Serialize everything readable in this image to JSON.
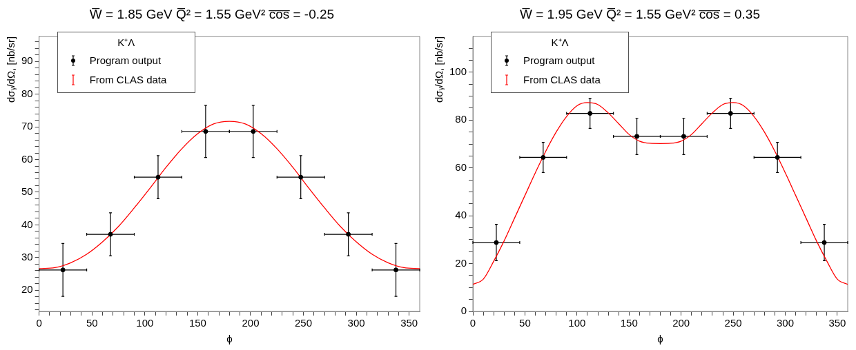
{
  "chart_data": [
    {
      "type": "scatter",
      "title": "W̅ = 1.85 GeV Q̅² = 1.55 GeV² c̅o̅s̅ = -0.25",
      "xlabel": "ϕ",
      "ylabel": "dσᵧ/dΩ, [nb/sr]",
      "legend_title": "K⁺Λ",
      "legend": "top left",
      "grid": false,
      "xlim": [
        0,
        360
      ],
      "xticks": [
        0,
        {
          "value": 10,
          "label": null
        },
        {
          "value": 20,
          "label": null
        },
        {
          "value": 30,
          "label": null
        },
        {
          "value": 40,
          "label": null
        },
        50,
        {
          "value": 60,
          "label": null
        },
        {
          "value": 70,
          "label": null
        },
        {
          "value": 80,
          "label": null
        },
        {
          "value": 90,
          "label": null
        },
        100,
        {
          "value": 110,
          "label": null
        },
        {
          "value": 120,
          "label": null
        },
        {
          "value": 130,
          "label": null
        },
        {
          "value": 140,
          "label": null
        },
        150,
        {
          "value": 160,
          "label": null
        },
        {
          "value": 170,
          "label": null
        },
        {
          "value": 180,
          "label": null
        },
        {
          "value": 190,
          "label": null
        },
        200,
        {
          "value": 210,
          "label": null
        },
        {
          "value": 220,
          "label": null
        },
        {
          "value": 230,
          "label": null
        },
        {
          "value": 240,
          "label": null
        },
        250,
        {
          "value": 260,
          "label": null
        },
        {
          "value": 270,
          "label": null
        },
        {
          "value": 280,
          "label": null
        },
        {
          "value": 290,
          "label": null
        },
        300,
        {
          "value": 310,
          "label": null
        },
        {
          "value": 320,
          "label": null
        },
        {
          "value": 330,
          "label": null
        },
        {
          "value": 340,
          "label": null
        },
        350
      ],
      "ylim": [
        13.5,
        97.7
      ],
      "yticks": [
        {
          "value": 14,
          "label": null
        },
        {
          "value": 16,
          "label": null
        },
        {
          "value": 18,
          "label": null
        },
        20,
        {
          "value": 22,
          "label": null
        },
        {
          "value": 24,
          "label": null
        },
        {
          "value": 26,
          "label": null
        },
        {
          "value": 28,
          "label": null
        },
        30,
        {
          "value": 32,
          "label": null
        },
        {
          "value": 34,
          "label": null
        },
        {
          "value": 36,
          "label": null
        },
        {
          "value": 38,
          "label": null
        },
        40,
        {
          "value": 42,
          "label": null
        },
        {
          "value": 44,
          "label": null
        },
        {
          "value": 46,
          "label": null
        },
        {
          "value": 48,
          "label": null
        },
        50,
        {
          "value": 52,
          "label": null
        },
        {
          "value": 54,
          "label": null
        },
        {
          "value": 56,
          "label": null
        },
        {
          "value": 58,
          "label": null
        },
        60,
        {
          "value": 62,
          "label": null
        },
        {
          "value": 64,
          "label": null
        },
        {
          "value": 66,
          "label": null
        },
        {
          "value": 68,
          "label": null
        },
        70,
        {
          "value": 72,
          "label": null
        },
        {
          "value": 74,
          "label": null
        },
        {
          "value": 76,
          "label": null
        },
        {
          "value": 78,
          "label": null
        },
        80,
        {
          "value": 82,
          "label": null
        },
        {
          "value": 84,
          "label": null
        },
        {
          "value": 86,
          "label": null
        },
        {
          "value": 88,
          "label": null
        },
        90,
        {
          "value": 92,
          "label": null
        },
        {
          "value": 94,
          "label": null
        },
        {
          "value": 96,
          "label": null
        }
      ],
      "series": [
        {
          "name": "Program output",
          "type": "scatter",
          "marker": "circle",
          "color": "#000000",
          "x": [
            22.5,
            67.5,
            112.5,
            157.5,
            202.5,
            247.5,
            292.5,
            337.5
          ],
          "values": [
            26.2,
            37.1,
            54.6,
            68.6,
            68.6,
            54.6,
            37.1,
            26.2
          ],
          "errors": [
            8.1,
            6.6,
            6.6,
            8.0,
            8.0,
            6.6,
            6.6,
            8.1
          ],
          "xerrors": [
            22.5,
            22.5,
            22.5,
            22.5,
            22.5,
            22.5,
            22.5,
            22.5
          ]
        },
        {
          "name": "From CLAS data",
          "type": "line",
          "color": "#ff0000",
          "x": [
            0,
            15,
            30,
            45,
            60,
            75,
            90,
            105,
            120,
            135,
            150,
            165,
            180,
            195,
            210,
            225,
            240,
            255,
            270,
            285,
            300,
            315,
            330,
            345,
            360
          ],
          "values": [
            26.6,
            26.9,
            28.4,
            31.0,
            34.8,
            39.5,
            45.2,
            51.3,
            57.6,
            63.3,
            67.9,
            70.9,
            71.7,
            70.9,
            67.9,
            63.3,
            57.6,
            51.3,
            45.2,
            39.5,
            34.8,
            31.0,
            28.4,
            26.9,
            26.6
          ]
        }
      ]
    },
    {
      "type": "scatter",
      "title": "W̅ = 1.95 GeV Q̅² = 1.55 GeV² c̅o̅s̅ = 0.35",
      "xlabel": "ϕ",
      "ylabel": "dσᵧ/dΩ, [nb/sr]",
      "legend_title": "K⁺Λ",
      "legend": "top left",
      "grid": false,
      "xlim": [
        0,
        360
      ],
      "xticks": [
        0,
        {
          "value": 10,
          "label": null
        },
        {
          "value": 20,
          "label": null
        },
        {
          "value": 30,
          "label": null
        },
        {
          "value": 40,
          "label": null
        },
        50,
        {
          "value": 60,
          "label": null
        },
        {
          "value": 70,
          "label": null
        },
        {
          "value": 80,
          "label": null
        },
        {
          "value": 90,
          "label": null
        },
        100,
        {
          "value": 110,
          "label": null
        },
        {
          "value": 120,
          "label": null
        },
        {
          "value": 130,
          "label": null
        },
        {
          "value": 140,
          "label": null
        },
        150,
        {
          "value": 160,
          "label": null
        },
        {
          "value": 170,
          "label": null
        },
        {
          "value": 180,
          "label": null
        },
        {
          "value": 190,
          "label": null
        },
        200,
        {
          "value": 210,
          "label": null
        },
        {
          "value": 220,
          "label": null
        },
        {
          "value": 230,
          "label": null
        },
        {
          "value": 240,
          "label": null
        },
        250,
        {
          "value": 260,
          "label": null
        },
        {
          "value": 270,
          "label": null
        },
        {
          "value": 280,
          "label": null
        },
        {
          "value": 290,
          "label": null
        },
        300,
        {
          "value": 310,
          "label": null
        },
        {
          "value": 320,
          "label": null
        },
        {
          "value": 330,
          "label": null
        },
        {
          "value": 340,
          "label": null
        },
        350
      ],
      "ylim": [
        0,
        115
      ],
      "yticks": [
        0,
        {
          "value": 5,
          "label": null
        },
        {
          "value": 10,
          "label": null
        },
        {
          "value": 15,
          "label": null
        },
        20,
        {
          "value": 25,
          "label": null
        },
        {
          "value": 30,
          "label": null
        },
        {
          "value": 35,
          "label": null
        },
        40,
        {
          "value": 45,
          "label": null
        },
        {
          "value": 50,
          "label": null
        },
        {
          "value": 55,
          "label": null
        },
        60,
        {
          "value": 65,
          "label": null
        },
        {
          "value": 70,
          "label": null
        },
        {
          "value": 75,
          "label": null
        },
        80,
        {
          "value": 85,
          "label": null
        },
        {
          "value": 90,
          "label": null
        },
        {
          "value": 95,
          "label": null
        },
        100,
        {
          "value": 105,
          "label": null
        },
        {
          "value": 110,
          "label": null
        }
      ],
      "series": [
        {
          "name": "Program output",
          "type": "scatter",
          "marker": "circle",
          "color": "#000000",
          "x": [
            22.5,
            67.5,
            112.5,
            157.5,
            202.5,
            247.5,
            292.5,
            337.5
          ],
          "values": [
            28.8,
            64.4,
            82.8,
            73.2,
            73.2,
            82.8,
            64.4,
            28.8
          ],
          "errors": [
            7.6,
            6.3,
            6.3,
            7.6,
            7.6,
            6.3,
            6.3,
            7.6
          ],
          "xerrors": [
            22.5,
            22.5,
            22.5,
            22.5,
            22.5,
            22.5,
            22.5,
            22.5
          ]
        },
        {
          "name": "From CLAS data",
          "type": "line",
          "color": "#ff0000",
          "x": [
            0,
            10,
            20,
            30,
            40,
            50,
            60,
            70,
            80,
            90,
            100,
            110,
            120,
            130,
            140,
            150,
            160,
            170,
            180,
            190,
            200,
            210,
            220,
            230,
            240,
            250,
            260,
            270,
            280,
            290,
            300,
            310,
            320,
            330,
            340,
            350,
            360
          ],
          "values": [
            11.3,
            13.5,
            21,
            29.5,
            39,
            48.5,
            58,
            67,
            75,
            81.5,
            86,
            87.3,
            86.5,
            83,
            78.5,
            74,
            71.2,
            70.3,
            70.2,
            70.3,
            71.2,
            74,
            78.5,
            83,
            86.5,
            87.3,
            86,
            81.5,
            75,
            67,
            58,
            48.5,
            39,
            29.5,
            21,
            13.5,
            11.3
          ]
        }
      ]
    }
  ]
}
